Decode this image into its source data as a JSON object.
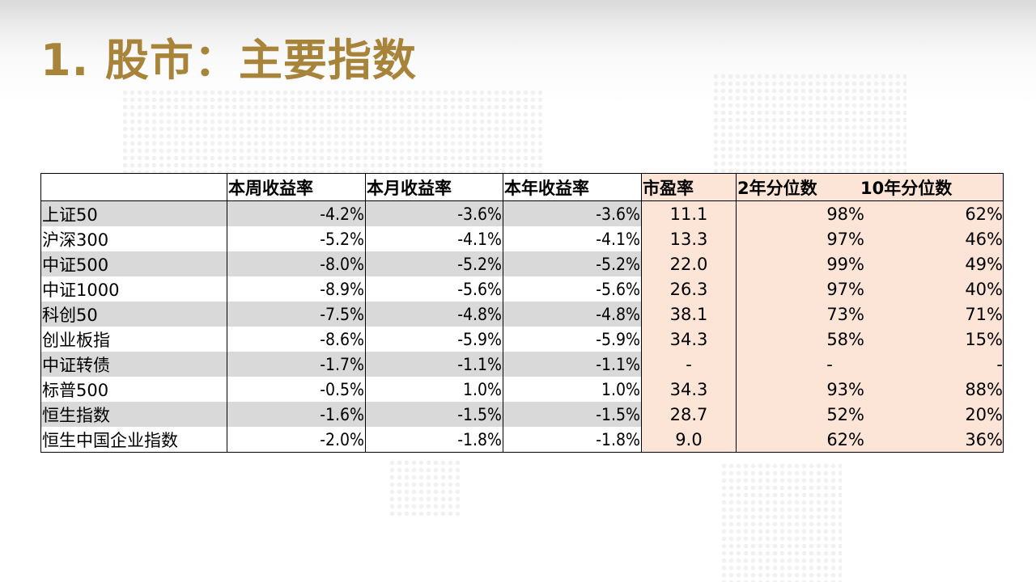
{
  "title": "1. 股市：主要指数",
  "table": {
    "headers": {
      "name": "",
      "weekly": "本周收益率",
      "monthly": "本月收益率",
      "ytd": "本年收益率",
      "pe": "市盈率",
      "pct2y": "2年分位数",
      "pct10y": "10年分位数"
    },
    "rows": [
      {
        "name": "上证50",
        "weekly": "-4.2%",
        "monthly": "-3.6%",
        "ytd": "-3.6%",
        "pe": "11.1",
        "pct2y": "98%",
        "pct10y": "62%"
      },
      {
        "name": "沪深300",
        "weekly": "-5.2%",
        "monthly": "-4.1%",
        "ytd": "-4.1%",
        "pe": "13.3",
        "pct2y": "97%",
        "pct10y": "46%"
      },
      {
        "name": "中证500",
        "weekly": "-8.0%",
        "monthly": "-5.2%",
        "ytd": "-5.2%",
        "pe": "22.0",
        "pct2y": "99%",
        "pct10y": "49%"
      },
      {
        "name": "中证1000",
        "weekly": "-8.9%",
        "monthly": "-5.6%",
        "ytd": "-5.6%",
        "pe": "26.3",
        "pct2y": "97%",
        "pct10y": "40%"
      },
      {
        "name": "科创50",
        "weekly": "-7.5%",
        "monthly": "-4.8%",
        "ytd": "-4.8%",
        "pe": "38.1",
        "pct2y": "73%",
        "pct10y": "71%"
      },
      {
        "name": "创业板指",
        "weekly": "-8.6%",
        "monthly": "-5.9%",
        "ytd": "-5.9%",
        "pe": "34.3",
        "pct2y": "58%",
        "pct10y": "15%"
      },
      {
        "name": "中证转债",
        "weekly": "-1.7%",
        "monthly": "-1.1%",
        "ytd": "-1.1%",
        "pe": "-",
        "pct2y": "-",
        "pct10y": "-"
      },
      {
        "name": "标普500",
        "weekly": "-0.5%",
        "monthly": "1.0%",
        "ytd": "1.0%",
        "pe": "34.3",
        "pct2y": "93%",
        "pct10y": "88%"
      },
      {
        "name": "恒生指数",
        "weekly": "-1.6%",
        "monthly": "-1.5%",
        "ytd": "-1.5%",
        "pe": "28.7",
        "pct2y": "52%",
        "pct10y": "20%"
      },
      {
        "name": "恒生中国企业指数",
        "weekly": "-2.0%",
        "monthly": "-1.8%",
        "ytd": "-1.8%",
        "pe": "9.0",
        "pct2y": "62%",
        "pct10y": "36%"
      }
    ]
  },
  "colors": {
    "title": "#a8833a",
    "row_shade": "#d9d9d9",
    "pe_fill": "#fce4d6"
  }
}
